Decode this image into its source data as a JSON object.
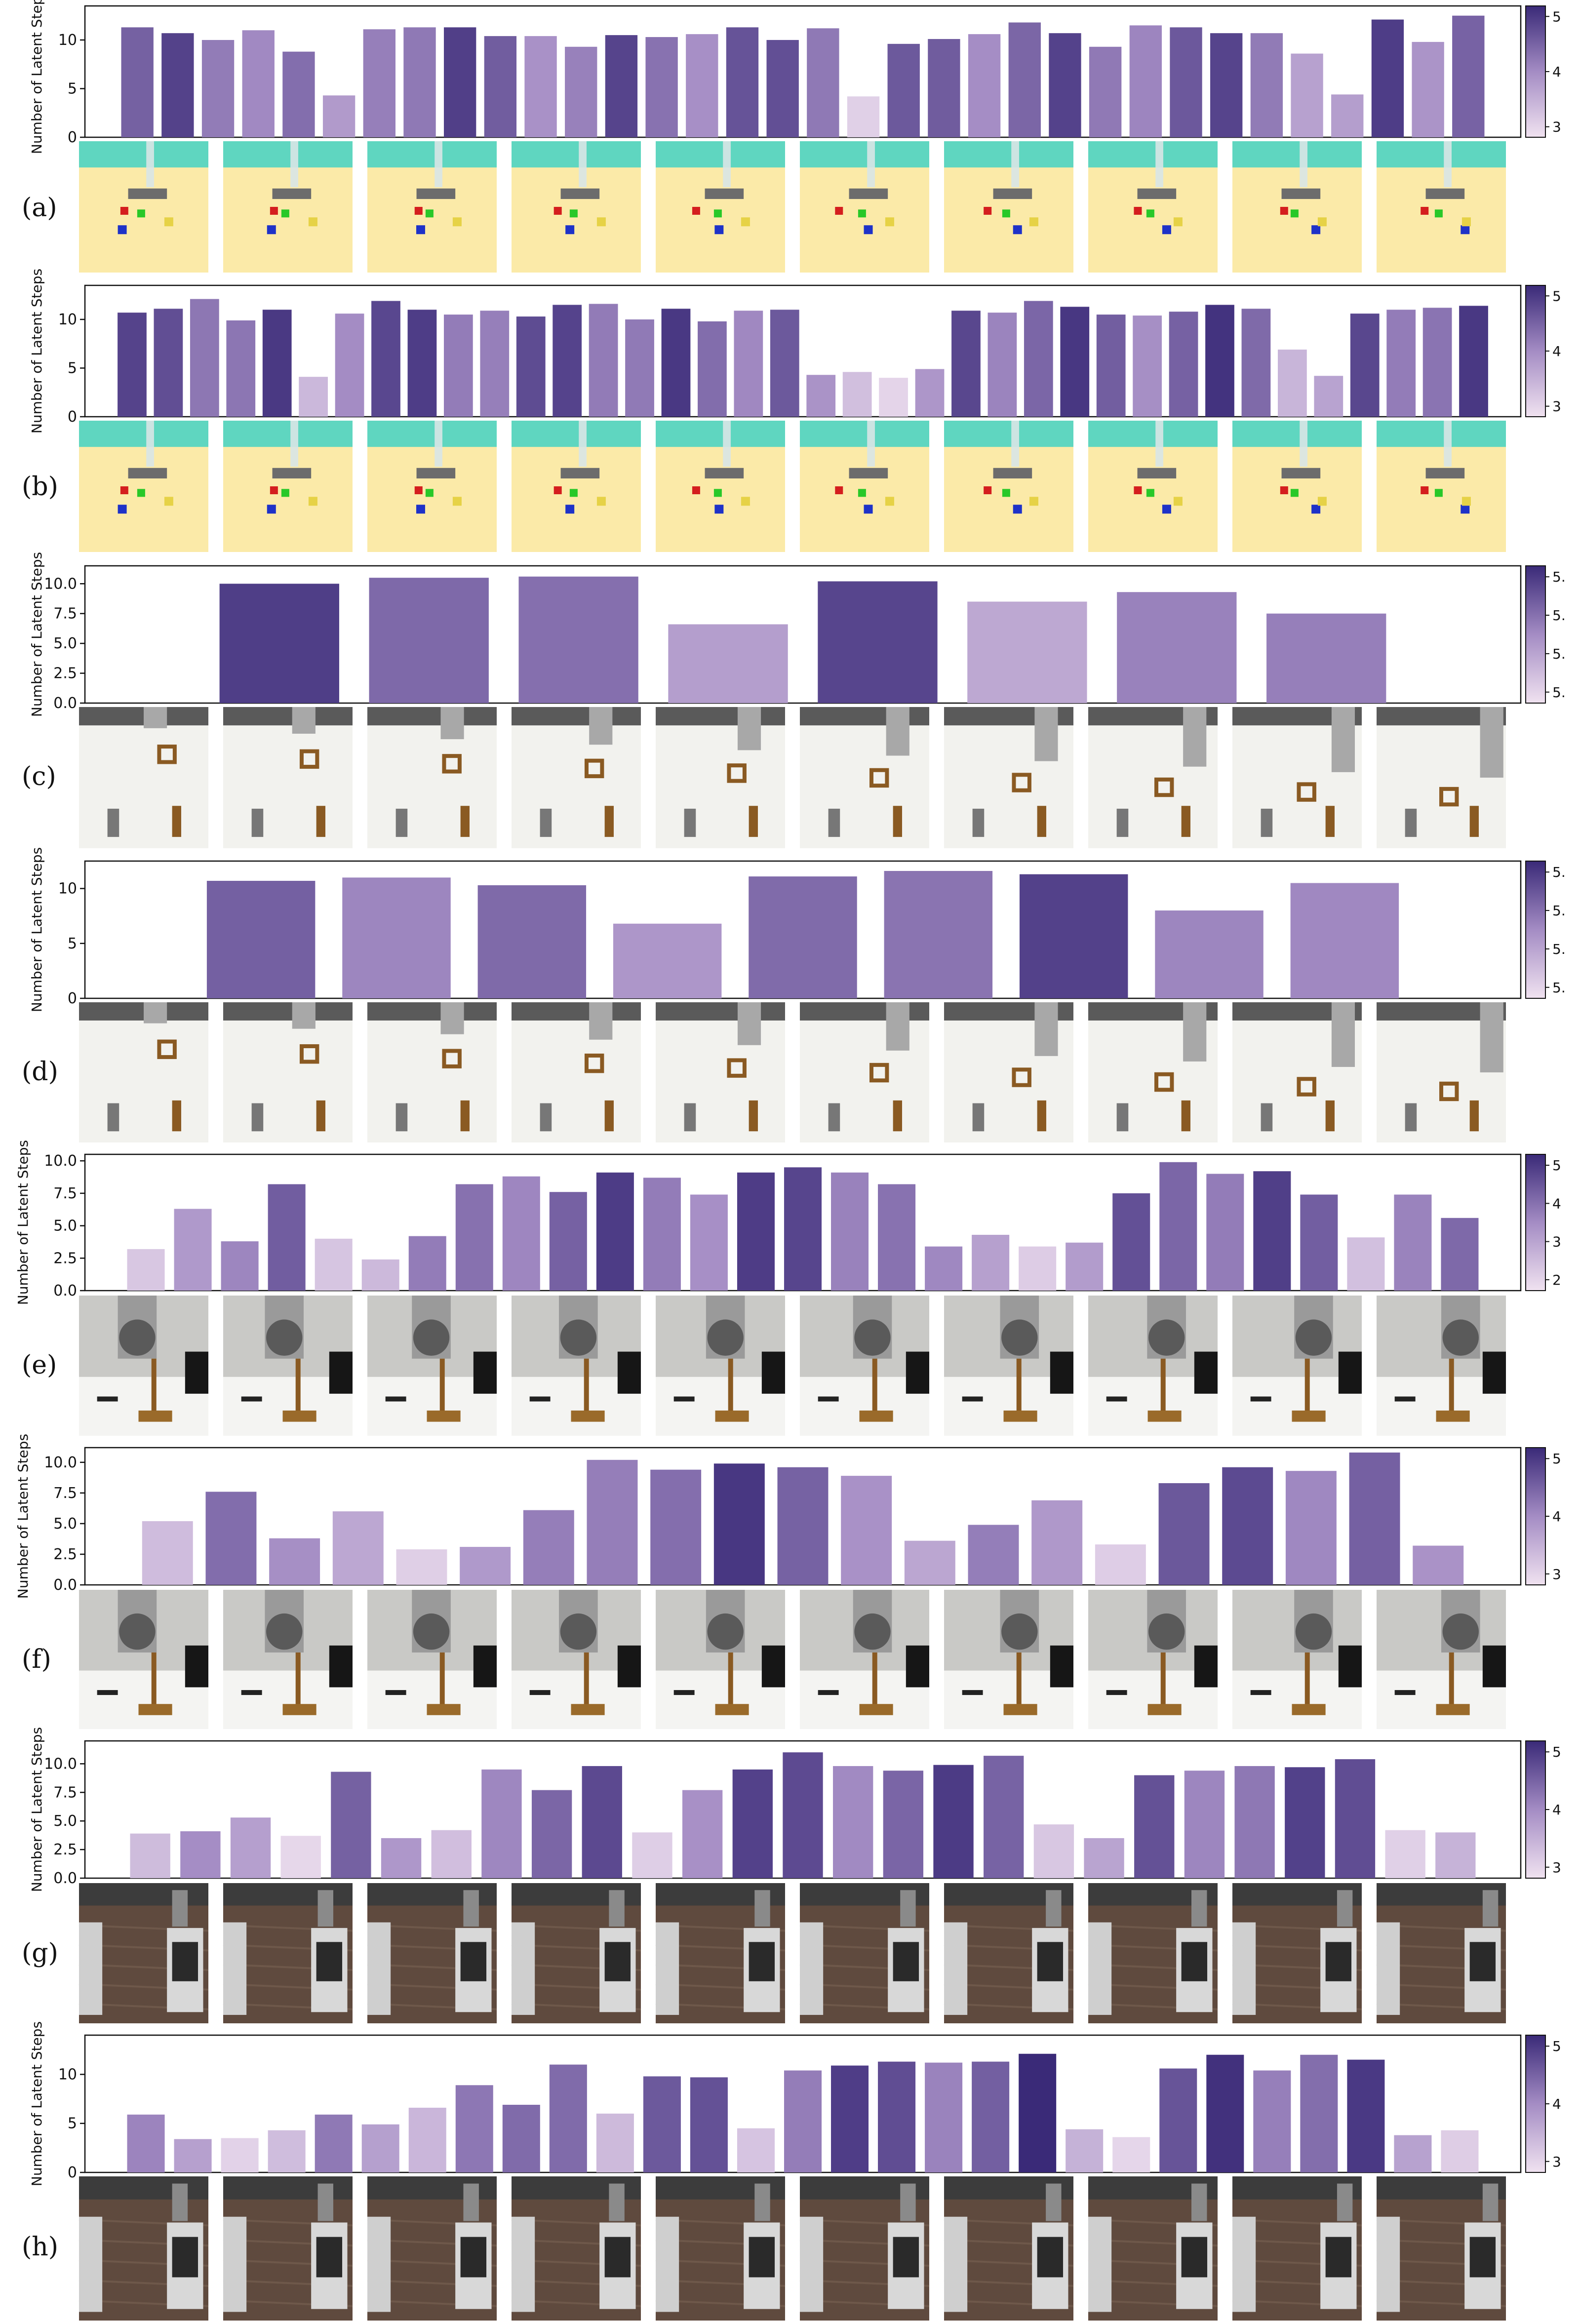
{
  "chart_data": [
    {
      "type": "bar",
      "panel": "(a)",
      "ylabel": "Number of Latent Steps",
      "ylim": [
        0,
        13.5
      ],
      "yticks": [
        "0",
        "5",
        "10"
      ],
      "values": [
        11.3,
        10.7,
        10.0,
        11.0,
        8.8,
        4.3,
        11.1,
        11.3,
        11.3,
        10.4,
        10.4,
        9.3,
        10.5,
        10.3,
        10.6,
        11.3,
        10.0,
        11.2,
        4.2,
        9.6,
        10.1,
        10.6,
        11.8,
        10.7,
        9.3,
        11.5,
        11.3,
        10.7,
        10.7,
        8.6,
        4.4,
        12.1,
        9.8,
        12.5
      ],
      "colorbar": {
        "ticks": [
          "3",
          "4",
          "5"
        ]
      },
      "frames": [
        "table-blocks"
      ]
    },
    {
      "type": "bar",
      "panel": "(b)",
      "ylabel": "Number of Latent Steps",
      "ylim": [
        0,
        13.5
      ],
      "yticks": [
        "0",
        "5",
        "10"
      ],
      "values": [
        10.7,
        11.1,
        12.1,
        9.9,
        11.0,
        4.1,
        10.6,
        11.9,
        11.0,
        10.5,
        10.9,
        10.3,
        11.5,
        11.6,
        10.0,
        11.1,
        9.8,
        10.9,
        11.0,
        4.3,
        4.6,
        4.0,
        4.9,
        10.9,
        10.7,
        11.9,
        11.3,
        10.5,
        10.4,
        10.8,
        11.5,
        11.1,
        6.9,
        4.2,
        10.6,
        11.0,
        11.2,
        11.4
      ],
      "colorbar": {
        "ticks": [
          "3",
          "4",
          "5"
        ]
      },
      "frames": [
        "table-blocks"
      ]
    },
    {
      "type": "bar",
      "panel": "(c)",
      "ylabel": "Number of Latent Steps",
      "ylim": [
        0,
        11.5
      ],
      "yticks": [
        "0.0",
        "2.5",
        "5.0",
        "7.5",
        "10.0"
      ],
      "values": [
        10.0,
        10.5,
        10.6,
        6.6,
        10.2,
        8.5,
        9.3,
        7.5
      ],
      "colorbar": {
        "ticks": [
          "5.",
          "5.",
          "5.",
          "5."
        ]
      },
      "frames": [
        "peg-square"
      ]
    },
    {
      "type": "bar",
      "panel": "(d)",
      "ylabel": "Number of Latent Steps",
      "ylim": [
        0,
        12.5
      ],
      "yticks": [
        "0",
        "5",
        "10"
      ],
      "values": [
        10.7,
        11.0,
        10.3,
        6.8,
        11.1,
        11.6,
        11.3,
        8.0,
        10.5
      ],
      "colorbar": {
        "ticks": [
          "5.",
          "5.",
          "5.",
          "5."
        ]
      },
      "frames": [
        "peg-square"
      ]
    },
    {
      "type": "bar",
      "panel": "(e)",
      "ylabel": "Number of Latent Steps",
      "ylim": [
        0,
        10.5
      ],
      "yticks": [
        "0.0",
        "2.5",
        "5.0",
        "7.5",
        "10.0"
      ],
      "values": [
        3.2,
        6.3,
        3.8,
        8.2,
        4.0,
        2.4,
        4.2,
        8.2,
        8.8,
        7.6,
        9.1,
        8.7,
        7.4,
        9.1,
        9.5,
        9.1,
        8.2,
        3.4,
        4.3,
        3.4,
        3.7,
        7.5,
        9.9,
        9.0,
        9.2,
        7.4,
        4.1,
        7.4,
        5.6
      ],
      "colorbar": {
        "ticks": [
          "2",
          "3",
          "4",
          "5"
        ]
      },
      "frames": [
        "tool-hang"
      ]
    },
    {
      "type": "bar",
      "panel": "(f)",
      "ylabel": "Number of Latent Steps",
      "ylim": [
        0,
        11.2
      ],
      "yticks": [
        "0.0",
        "2.5",
        "5.0",
        "7.5",
        "10.0"
      ],
      "values": [
        5.2,
        7.6,
        3.8,
        6.0,
        2.9,
        3.1,
        6.1,
        10.2,
        9.4,
        9.9,
        9.6,
        8.9,
        3.6,
        4.9,
        6.9,
        3.3,
        8.3,
        9.6,
        9.3,
        10.8,
        3.2
      ],
      "colorbar": {
        "ticks": [
          "3",
          "4",
          "5"
        ]
      },
      "frames": [
        "tool-hang"
      ]
    },
    {
      "type": "bar",
      "panel": "(g)",
      "ylabel": "Number of Latent Steps",
      "ylim": [
        0,
        12.0
      ],
      "yticks": [
        "0.0",
        "2.5",
        "5.0",
        "7.5",
        "10.0"
      ],
      "values": [
        3.9,
        4.1,
        5.3,
        3.7,
        9.3,
        3.5,
        4.2,
        9.5,
        7.7,
        9.8,
        4.0,
        7.7,
        9.5,
        11.0,
        9.8,
        9.4,
        9.9,
        10.7,
        4.7,
        3.5,
        9.0,
        9.4,
        9.8,
        9.7,
        10.4,
        4.2,
        4.0
      ],
      "colorbar": {
        "ticks": [
          "3",
          "4",
          "5"
        ]
      },
      "frames": [
        "kitchen"
      ]
    },
    {
      "type": "bar",
      "panel": "(h)",
      "ylabel": "Number of Latent Steps",
      "ylim": [
        0,
        14.0
      ],
      "yticks": [
        "0",
        "5",
        "10"
      ],
      "values": [
        5.9,
        3.4,
        3.5,
        4.3,
        5.9,
        4.9,
        6.6,
        8.9,
        6.9,
        11.0,
        6.0,
        9.8,
        9.7,
        4.5,
        10.4,
        10.9,
        11.3,
        11.2,
        11.3,
        12.1,
        4.4,
        3.6,
        10.6,
        12.0,
        10.4,
        12.0,
        11.5,
        3.8,
        4.3
      ],
      "colorbar": {
        "ticks": [
          "3",
          "4",
          "5"
        ]
      },
      "frames": [
        "kitchen"
      ]
    }
  ],
  "colors": {
    "cmap_light": "#f0e2f0",
    "cmap_mid": "#a48cc4",
    "cmap_dark": "#3a2a78",
    "axis": "#111111"
  }
}
